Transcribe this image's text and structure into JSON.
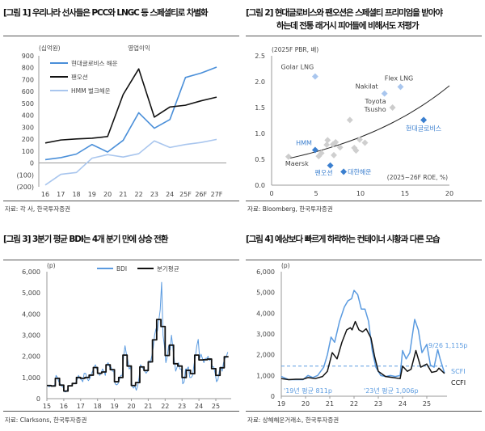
{
  "watermark": "trueFriend",
  "fig1": {
    "title": "[그림 1] 우리나라 선사들은 PCC와 LNGC 등 스페셜티로 차별화",
    "source": "자료: 각 사, 한국투자증권"
  },
  "fig2": {
    "title_line1": "[그림 2] 현대글로비스와 팬오션은 스페셜티 프리미엄을 받아야",
    "title_line2": "하는데 전통 래거시 피어들에 비해서도 저평가",
    "source": "자료: Bloomberg, 한국투자증권"
  },
  "fig3": {
    "title": "[그림 3] 3분기 평균 BDI는 4개 분기 만에 상승 전환",
    "source": "자료: Clarksons, 한국투자증권"
  },
  "fig4": {
    "title": "[그림 4] 예상보다 빠르게 하락하는 컨테이너 시황과 다른 모습",
    "source": "자료: 상해해운거래소, 한국투자증권"
  },
  "chart_data": [
    {
      "type": "line",
      "title": "영업이익",
      "ylabel": "(십억원)",
      "ylim": [
        -200,
        900
      ],
      "yticks": [
        -200,
        -100,
        0,
        100,
        200,
        300,
        400,
        500,
        600,
        700,
        800,
        900
      ],
      "ytick_labels": [
        "(200)",
        "(100)",
        "0",
        "100",
        "200",
        "300",
        "400",
        "500",
        "600",
        "700",
        "800",
        "900"
      ],
      "categories": [
        "16",
        "17",
        "18",
        "19",
        "20",
        "21",
        "22",
        "23",
        "24",
        "25F",
        "26F",
        "27F"
      ],
      "legend": "top-left",
      "series": [
        {
          "name": "현대글로비스 해운",
          "color": "#4a8fd9",
          "values": [
            28,
            45,
            75,
            155,
            92,
            190,
            422,
            292,
            365,
            718,
            755,
            805
          ]
        },
        {
          "name": "팬오션",
          "color": "#111111",
          "values": [
            168,
            193,
            202,
            208,
            222,
            575,
            790,
            385,
            470,
            485,
            522,
            553
          ]
        },
        {
          "name": "HMM 벌크해운",
          "color": "#a9c6ee",
          "values": [
            -185,
            -95,
            -80,
            40,
            70,
            50,
            78,
            185,
            130,
            155,
            172,
            198
          ]
        }
      ]
    },
    {
      "type": "scatter",
      "ylabel": "(2025F PBR, 배)",
      "xlabel": "(2025~26F ROE, %)",
      "xlim": [
        0,
        20
      ],
      "ylim": [
        0,
        2.5
      ],
      "xticks": [
        0,
        5,
        10,
        15,
        20
      ],
      "yticks": [
        0.0,
        0.5,
        1.0,
        1.5,
        2.0,
        2.5
      ],
      "trendline": "exponential",
      "labeled_points": [
        {
          "label": "Golar LNG",
          "x": 4.9,
          "y": 2.1,
          "color": "#a9c6ee",
          "label_color": "#444"
        },
        {
          "label": "Flex LNG",
          "x": 14.5,
          "y": 1.9,
          "color": "#a9c6ee",
          "label_color": "#444"
        },
        {
          "label": "Nakilat",
          "x": 12.7,
          "y": 1.77,
          "color": "#a9c6ee",
          "label_color": "#444"
        },
        {
          "label": "Toyota Tsusho",
          "x": 13.6,
          "y": 1.5,
          "color": "#cccccc",
          "label_color": "#444"
        },
        {
          "label": "현대글로비스",
          "x": 17.1,
          "y": 1.26,
          "color": "#3b7fcf",
          "label_color": "#3b7fcf"
        },
        {
          "label": "HMM",
          "x": 4.9,
          "y": 0.68,
          "color": "#3b7fcf",
          "label_color": "#3b7fcf"
        },
        {
          "label": "팬오션",
          "x": 6.6,
          "y": 0.38,
          "color": "#3b7fcf",
          "label_color": "#3b7fcf"
        },
        {
          "label": "대한해운",
          "x": 8.1,
          "y": 0.26,
          "color": "#3b7fcf",
          "label_color": "#3b7fcf"
        },
        {
          "label": "Maersk",
          "x": 1.9,
          "y": 0.55,
          "color": "#cccccc",
          "label_color": "#444"
        }
      ],
      "other_points": [
        [
          8.8,
          1.26
        ],
        [
          6.3,
          0.87
        ],
        [
          6.2,
          0.78
        ],
        [
          7.2,
          0.83
        ],
        [
          6.9,
          0.79
        ],
        [
          9.9,
          0.88
        ],
        [
          10.5,
          0.82
        ],
        [
          7.7,
          0.73
        ],
        [
          9.3,
          0.72
        ],
        [
          9.5,
          0.67
        ],
        [
          7.0,
          0.58
        ],
        [
          5.6,
          0.62
        ],
        [
          5.3,
          0.56
        ]
      ]
    },
    {
      "type": "line",
      "ylabel": "(p)",
      "ylim": [
        0,
        6000
      ],
      "yticks": [
        0,
        1000,
        2000,
        3000,
        4000,
        5000,
        6000
      ],
      "ytick_labels": [
        "0",
        "1,000",
        "2,000",
        "3,000",
        "4,000",
        "5,000",
        "6,000"
      ],
      "xticks": [
        "15",
        "16",
        "17",
        "18",
        "19",
        "20",
        "21",
        "22",
        "23",
        "24",
        "25"
      ],
      "legend": "top",
      "series": [
        {
          "name": "BDI",
          "color": "#5b9be0",
          "frequency": "monthly",
          "start": "2015-01",
          "values": [
            650,
            560,
            600,
            580,
            620,
            620,
            1100,
            1000,
            800,
            700,
            600,
            550,
            330,
            320,
            400,
            600,
            620,
            600,
            700,
            720,
            750,
            900,
            1100,
            950,
            900,
            800,
            1200,
            1200,
            950,
            850,
            950,
            1150,
            1300,
            1500,
            1600,
            1400,
            1200,
            1100,
            1200,
            1400,
            1300,
            1100,
            1600,
            1700,
            1500,
            1500,
            1300,
            1300,
            700,
            650,
            700,
            900,
            1100,
            1100,
            2000,
            2500,
            2100,
            1800,
            1400,
            1500,
            600,
            500,
            600,
            400,
            600,
            1000,
            1600,
            1500,
            1400,
            1300,
            1200,
            1300,
            1800,
            1700,
            2000,
            2400,
            3000,
            3300,
            3200,
            3700,
            4200,
            5500,
            3000,
            2500,
            1700,
            2000,
            2500,
            2300,
            3000,
            2400,
            1800,
            1300,
            1500,
            1700,
            1400,
            1400,
            700,
            800,
            1400,
            1400,
            1500,
            1000,
            1000,
            1100,
            1600,
            2000,
            2500,
            2800,
            1900,
            2100,
            1900,
            1700,
            1900,
            1900,
            2000,
            1800,
            1900,
            1500,
            1500,
            1200,
            800,
            900,
            1300,
            1500,
            1300,
            1700,
            1900,
            2000,
            2200
          ]
        },
        {
          "name": "분기평균",
          "color": "#111111",
          "frequency": "quarterly",
          "start": "2015-Q1",
          "values": [
            620,
            600,
            960,
            640,
            358,
            607,
            718,
            1000,
            960,
            1000,
            1110,
            1470,
            1200,
            1260,
            1600,
            1370,
            800,
            1000,
            2060,
            1540,
            620,
            760,
            1500,
            1330,
            1740,
            2780,
            3740,
            3410,
            2040,
            2530,
            1650,
            1540,
            1000,
            1340,
            1180,
            2060,
            1830,
            1840,
            1870,
            1420,
            1100,
            1460,
            1980
          ]
        }
      ]
    },
    {
      "type": "line",
      "ylabel": "(p)",
      "ylim": [
        0,
        6000
      ],
      "yticks": [
        0,
        1000,
        2000,
        3000,
        4000,
        5000,
        6000
      ],
      "ytick_labels": [
        "0",
        "1,000",
        "2,000",
        "3,000",
        "4,000",
        "5,000",
        "6,000"
      ],
      "xticks": [
        "19",
        "20",
        "21",
        "22",
        "23",
        "24",
        "25"
      ],
      "reference_line": 1450,
      "annotations": [
        "'19년 평균 811p",
        "'23년 평균 1,006p",
        "9/26 1,115p"
      ],
      "series": [
        {
          "name": "SCFI",
          "color": "#5b9be0",
          "points": [
            [
              2019,
              950
            ],
            [
              2019.3,
              800
            ],
            [
              2019.6,
              800
            ],
            [
              2019.9,
              800
            ],
            [
              2020.1,
              1000
            ],
            [
              2020.3,
              900
            ],
            [
              2020.5,
              1000
            ],
            [
              2020.75,
              1400
            ],
            [
              2020.9,
              2000
            ],
            [
              2021.05,
              2850
            ],
            [
              2021.2,
              2600
            ],
            [
              2021.4,
              3600
            ],
            [
              2021.6,
              4300
            ],
            [
              2021.75,
              4600
            ],
            [
              2021.9,
              4700
            ],
            [
              2022.0,
              5100
            ],
            [
              2022.15,
              4900
            ],
            [
              2022.3,
              4200
            ],
            [
              2022.45,
              4200
            ],
            [
              2022.6,
              3600
            ],
            [
              2022.75,
              2200
            ],
            [
              2022.9,
              1400
            ],
            [
              2023.1,
              1000
            ],
            [
              2023.3,
              950
            ],
            [
              2023.5,
              1000
            ],
            [
              2023.7,
              950
            ],
            [
              2023.9,
              1000
            ],
            [
              2024.0,
              2200
            ],
            [
              2024.15,
              1800
            ],
            [
              2024.3,
              2100
            ],
            [
              2024.5,
              3700
            ],
            [
              2024.65,
              3200
            ],
            [
              2024.8,
              2100
            ],
            [
              2025.0,
              2500
            ],
            [
              2025.15,
              1500
            ],
            [
              2025.3,
              1400
            ],
            [
              2025.45,
              2250
            ],
            [
              2025.55,
              1800
            ],
            [
              2025.73,
              1115
            ]
          ]
        },
        {
          "name": "CCFI",
          "color": "#111111",
          "points": [
            [
              2019,
              850
            ],
            [
              2019.3,
              800
            ],
            [
              2019.6,
              820
            ],
            [
              2019.9,
              820
            ],
            [
              2020.1,
              900
            ],
            [
              2020.4,
              850
            ],
            [
              2020.7,
              950
            ],
            [
              2020.9,
              1200
            ],
            [
              2021.1,
              2100
            ],
            [
              2021.3,
              1800
            ],
            [
              2021.5,
              2600
            ],
            [
              2021.7,
              3200
            ],
            [
              2021.85,
              3300
            ],
            [
              2021.92,
              3200
            ],
            [
              2022.05,
              3600
            ],
            [
              2022.2,
              3200
            ],
            [
              2022.35,
              3100
            ],
            [
              2022.5,
              3250
            ],
            [
              2022.7,
              2800
            ],
            [
              2022.85,
              1900
            ],
            [
              2023.0,
              1200
            ],
            [
              2023.3,
              950
            ],
            [
              2023.6,
              900
            ],
            [
              2023.9,
              850
            ],
            [
              2024.0,
              1450
            ],
            [
              2024.2,
              1200
            ],
            [
              2024.35,
              1300
            ],
            [
              2024.55,
              2200
            ],
            [
              2024.75,
              1400
            ],
            [
              2025.0,
              1550
            ],
            [
              2025.2,
              1150
            ],
            [
              2025.4,
              1200
            ],
            [
              2025.5,
              1350
            ],
            [
              2025.73,
              1100
            ]
          ]
        }
      ]
    }
  ]
}
